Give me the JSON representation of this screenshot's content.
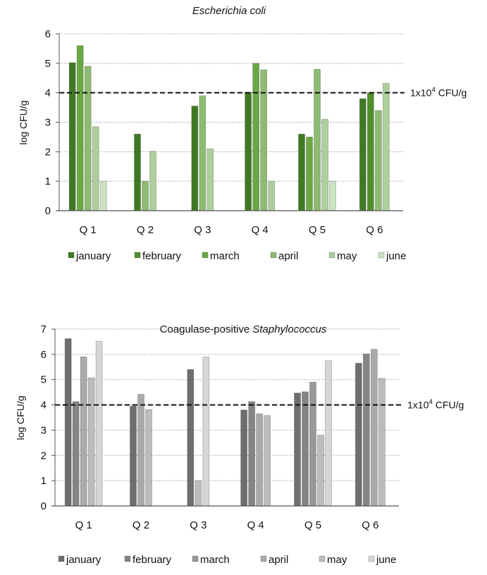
{
  "chart_data": [
    {
      "type": "bar",
      "title": "Escherichia coli",
      "title_italic": true,
      "xlabel": "",
      "ylabel": "log CFU/g",
      "ylim": [
        0,
        6
      ],
      "yticks": [
        "0",
        "1",
        "2",
        "3",
        "4",
        "5",
        "6"
      ],
      "grid": "horizontal dotted",
      "legend": "bottom",
      "categories": [
        "Q 1",
        "Q 2",
        "Q 3",
        "Q 4",
        "Q 5",
        "Q 6"
      ],
      "threshold": {
        "value": 4,
        "label_prefix": "1x10",
        "label_exp": "4",
        "label_suffix": " CFU/g"
      },
      "series": [
        {
          "name": "january",
          "color": "#3f7a22",
          "values": [
            5.02,
            2.6,
            3.55,
            4.02,
            2.6,
            3.8
          ]
        },
        {
          "name": "february",
          "color": "#4f8f2c",
          "values": [
            null,
            null,
            null,
            null,
            null,
            4.0
          ]
        },
        {
          "name": "march",
          "color": "#6aa843",
          "values": [
            5.6,
            null,
            null,
            5.0,
            2.5,
            null
          ]
        },
        {
          "name": "april",
          "color": "#8dbb72",
          "values": [
            4.9,
            1.0,
            3.9,
            4.78,
            4.8,
            3.4
          ]
        },
        {
          "name": "may",
          "color": "#aecf9c",
          "values": [
            2.85,
            2.02,
            2.1,
            1.0,
            3.1,
            4.32
          ]
        },
        {
          "name": "june",
          "color": "#cce2c2",
          "values": [
            1.0,
            null,
            null,
            null,
            1.0,
            null
          ]
        }
      ]
    },
    {
      "type": "bar",
      "title_prefix": "Coagulase-positive ",
      "title_italic_part": "Staphylococcus",
      "xlabel": "",
      "ylabel": "log CFU/g",
      "ylim": [
        0,
        7
      ],
      "yticks": [
        "0",
        "1",
        "2",
        "3",
        "4",
        "5",
        "6",
        "7"
      ],
      "grid": "horizontal dotted",
      "legend": "bottom",
      "categories": [
        "Q 1",
        "Q 2",
        "Q 3",
        "Q 4",
        "Q 5",
        "Q 6"
      ],
      "threshold": {
        "value": 4,
        "label_prefix": "1x10",
        "label_exp": "4",
        "label_suffix": " CFU/g"
      },
      "series": [
        {
          "name": "january",
          "color": "#6e6e6e",
          "values": [
            6.62,
            3.95,
            5.4,
            3.8,
            4.47,
            5.65
          ]
        },
        {
          "name": "february",
          "color": "#858585",
          "values": [
            4.13,
            null,
            null,
            4.13,
            4.52,
            6.02
          ]
        },
        {
          "name": "march",
          "color": "#989898",
          "values": [
            null,
            null,
            null,
            null,
            4.9,
            null
          ]
        },
        {
          "name": "april",
          "color": "#aaaaaa",
          "values": [
            5.9,
            4.42,
            null,
            3.65,
            null,
            6.2
          ]
        },
        {
          "name": "may",
          "color": "#bcbcbc",
          "values": [
            5.07,
            3.82,
            1.0,
            3.58,
            2.8,
            5.05
          ]
        },
        {
          "name": "june",
          "color": "#d6d6d6",
          "values": [
            6.52,
            null,
            5.9,
            null,
            5.75,
            null
          ]
        }
      ]
    }
  ]
}
